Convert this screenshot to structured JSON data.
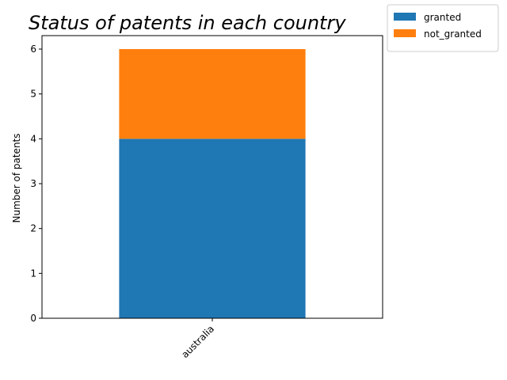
{
  "chart_data": {
    "type": "bar",
    "stacked": true,
    "title": "Status of patents in each country",
    "xlabel": "",
    "ylabel": "Number of patents",
    "categories": [
      "australia"
    ],
    "series": [
      {
        "name": "granted",
        "values": [
          4
        ],
        "color": "#1f77b4"
      },
      {
        "name": "not_granted",
        "values": [
          2
        ],
        "color": "#ff7f0e"
      }
    ],
    "ylim": [
      0,
      6.3
    ],
    "yticks": [
      "0",
      "1",
      "2",
      "3",
      "4",
      "5",
      "6"
    ],
    "grid": false,
    "legend_position": "outside top-right"
  }
}
